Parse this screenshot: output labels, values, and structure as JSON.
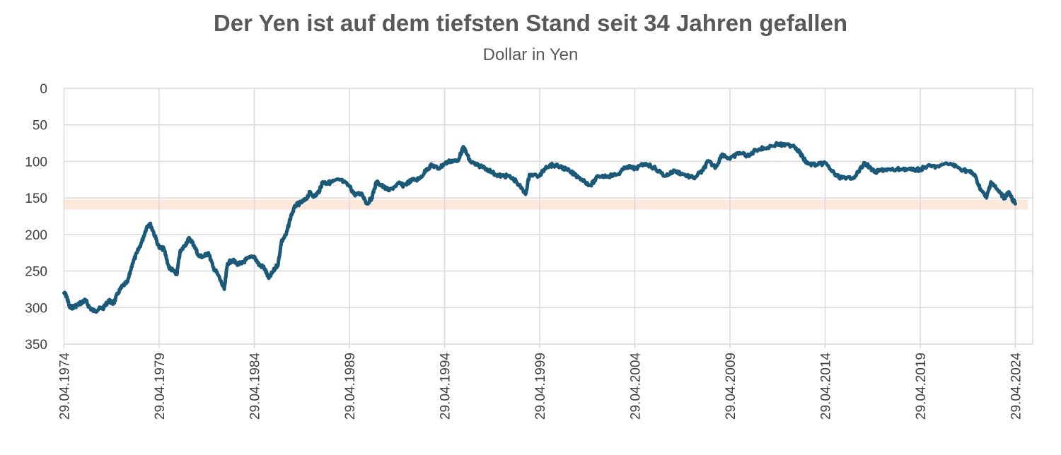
{
  "chart_data": {
    "type": "line",
    "title": "Der Yen ist auf dem tiefsten Stand seit 34 Jahren gefallen",
    "subtitle": "Dollar in Yen",
    "ylim": [
      0,
      350
    ],
    "y_inverted": true,
    "y_ticks": [
      "0",
      "50",
      "100",
      "150",
      "200",
      "250",
      "300",
      "350"
    ],
    "x_range": [
      "1974-04-29",
      "2024-04-29"
    ],
    "x_ticks": [
      "29.04.1974",
      "29.04.1979",
      "29.04.1984",
      "29.04.1989",
      "29.04.1994",
      "29.04.1999",
      "29.04.2004",
      "29.04.2009",
      "29.04.2014",
      "29.04.2019",
      "29.04.2024"
    ],
    "grid": true,
    "highlight_band": [
      155,
      168
    ],
    "colors": {
      "line": "#1a5a78",
      "grid": "#d9d9d9",
      "band": "#fde9dc"
    },
    "series": [
      {
        "points": [
          [
            "1974-04-29",
            280
          ],
          [
            "1974-06-15",
            284
          ],
          [
            "1974-08-15",
            300
          ],
          [
            "1974-11-01",
            299
          ],
          [
            "1975-01-01",
            297
          ],
          [
            "1975-04-01",
            293
          ],
          [
            "1975-06-15",
            290
          ],
          [
            "1975-09-01",
            300
          ],
          [
            "1975-12-01",
            305
          ],
          [
            "1976-03-01",
            302
          ],
          [
            "1976-06-01",
            300
          ],
          [
            "1976-09-01",
            290
          ],
          [
            "1976-12-01",
            295
          ],
          [
            "1977-03-01",
            280
          ],
          [
            "1977-06-01",
            270
          ],
          [
            "1977-09-01",
            265
          ],
          [
            "1977-12-01",
            240
          ],
          [
            "1978-03-01",
            225
          ],
          [
            "1978-06-01",
            210
          ],
          [
            "1978-09-01",
            190
          ],
          [
            "1978-11-01",
            185
          ],
          [
            "1979-01-01",
            195
          ],
          [
            "1979-04-29",
            218
          ],
          [
            "1979-08-01",
            220
          ],
          [
            "1979-11-01",
            245
          ],
          [
            "1980-02-01",
            250
          ],
          [
            "1980-04-01",
            255
          ],
          [
            "1980-06-01",
            225
          ],
          [
            "1980-09-01",
            215
          ],
          [
            "1980-12-01",
            205
          ],
          [
            "1981-03-01",
            215
          ],
          [
            "1981-06-01",
            230
          ],
          [
            "1981-09-01",
            230
          ],
          [
            "1981-12-01",
            225
          ],
          [
            "1982-03-01",
            245
          ],
          [
            "1982-06-01",
            255
          ],
          [
            "1982-10-01",
            275
          ],
          [
            "1982-12-01",
            240
          ],
          [
            "1983-03-01",
            235
          ],
          [
            "1983-06-01",
            240
          ],
          [
            "1983-09-01",
            240
          ],
          [
            "1983-12-01",
            234
          ],
          [
            "1984-04-29",
            230
          ],
          [
            "1984-08-01",
            242
          ],
          [
            "1984-11-01",
            245
          ],
          [
            "1985-02-01",
            260
          ],
          [
            "1985-05-01",
            250
          ],
          [
            "1985-08-01",
            240
          ],
          [
            "1985-10-01",
            210
          ],
          [
            "1986-01-01",
            200
          ],
          [
            "1986-04-01",
            175
          ],
          [
            "1986-07-01",
            160
          ],
          [
            "1986-10-01",
            157
          ],
          [
            "1987-01-01",
            153
          ],
          [
            "1987-04-01",
            143
          ],
          [
            "1987-07-01",
            148
          ],
          [
            "1987-10-01",
            140
          ],
          [
            "1987-12-01",
            128
          ],
          [
            "1988-03-01",
            130
          ],
          [
            "1988-06-01",
            128
          ],
          [
            "1988-11-01",
            125
          ],
          [
            "1989-04-29",
            134
          ],
          [
            "1989-08-01",
            145
          ],
          [
            "1990-01-01",
            145
          ],
          [
            "1990-04-01",
            158
          ],
          [
            "1990-07-01",
            150
          ],
          [
            "1990-10-01",
            128
          ],
          [
            "1991-01-01",
            133
          ],
          [
            "1991-06-01",
            140
          ],
          [
            "1991-12-01",
            130
          ],
          [
            "1992-03-01",
            133
          ],
          [
            "1992-08-01",
            126
          ],
          [
            "1993-01-01",
            124
          ],
          [
            "1993-06-01",
            110
          ],
          [
            "1993-09-01",
            105
          ],
          [
            "1994-01-01",
            110
          ],
          [
            "1994-04-29",
            103
          ],
          [
            "1994-09-01",
            99
          ],
          [
            "1995-01-01",
            100
          ],
          [
            "1995-04-19",
            82
          ],
          [
            "1995-06-01",
            85
          ],
          [
            "1995-09-01",
            100
          ],
          [
            "1996-01-01",
            105
          ],
          [
            "1996-06-01",
            108
          ],
          [
            "1997-01-01",
            118
          ],
          [
            "1997-05-01",
            120
          ],
          [
            "1997-09-01",
            120
          ],
          [
            "1998-02-01",
            127
          ],
          [
            "1998-08-01",
            145
          ],
          [
            "1998-10-15",
            118
          ],
          [
            "1999-04-29",
            120
          ],
          [
            "1999-09-01",
            107
          ],
          [
            "2000-01-01",
            105
          ],
          [
            "2000-07-01",
            108
          ],
          [
            "2000-12-01",
            114
          ],
          [
            "2001-06-01",
            122
          ],
          [
            "2002-01-01",
            133
          ],
          [
            "2002-06-01",
            120
          ],
          [
            "2002-12-01",
            120
          ],
          [
            "2003-06-01",
            118
          ],
          [
            "2003-12-01",
            107
          ],
          [
            "2004-04-29",
            110
          ],
          [
            "2004-12-01",
            103
          ],
          [
            "2005-06-01",
            110
          ],
          [
            "2005-12-01",
            120
          ],
          [
            "2006-06-01",
            113
          ],
          [
            "2006-12-01",
            118
          ],
          [
            "2007-06-01",
            123
          ],
          [
            "2007-12-01",
            112
          ],
          [
            "2008-03-01",
            100
          ],
          [
            "2008-08-01",
            108
          ],
          [
            "2008-12-01",
            90
          ],
          [
            "2009-04-29",
            97
          ],
          [
            "2009-11-01",
            88
          ],
          [
            "2010-05-01",
            93
          ],
          [
            "2010-09-01",
            84
          ],
          [
            "2011-03-01",
            82
          ],
          [
            "2011-10-31",
            76
          ],
          [
            "2012-02-01",
            78
          ],
          [
            "2012-09-01",
            78
          ],
          [
            "2012-12-01",
            85
          ],
          [
            "2013-03-01",
            95
          ],
          [
            "2013-05-20",
            103
          ],
          [
            "2013-12-01",
            105
          ],
          [
            "2014-04-29",
            102
          ],
          [
            "2014-12-01",
            120
          ],
          [
            "2015-06-01",
            124
          ],
          [
            "2015-12-01",
            120
          ],
          [
            "2016-06-01",
            102
          ],
          [
            "2016-12-01",
            115
          ],
          [
            "2017-06-01",
            111
          ],
          [
            "2017-12-01",
            112
          ],
          [
            "2018-06-01",
            110
          ],
          [
            "2018-12-01",
            112
          ],
          [
            "2019-04-29",
            111
          ],
          [
            "2019-09-01",
            107
          ],
          [
            "2020-03-01",
            107
          ],
          [
            "2020-12-01",
            103
          ],
          [
            "2021-06-01",
            110
          ],
          [
            "2021-12-01",
            114
          ],
          [
            "2022-03-01",
            118
          ],
          [
            "2022-07-01",
            138
          ],
          [
            "2022-10-21",
            150
          ],
          [
            "2023-01-15",
            128
          ],
          [
            "2023-06-01",
            140
          ],
          [
            "2023-10-01",
            150
          ],
          [
            "2023-12-15",
            142
          ],
          [
            "2024-02-01",
            148
          ],
          [
            "2024-04-29",
            158
          ]
        ]
      }
    ]
  }
}
